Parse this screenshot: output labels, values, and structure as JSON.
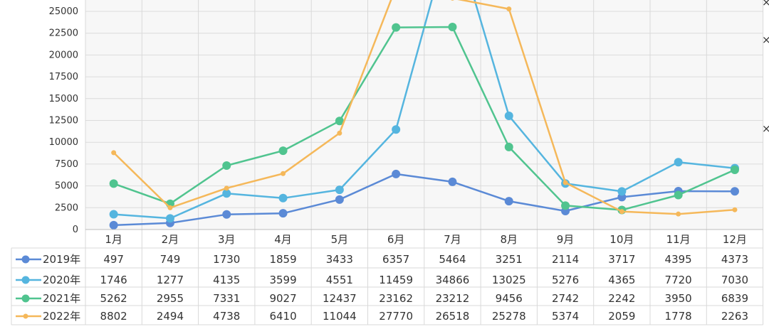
{
  "chart_data": {
    "type": "line",
    "title": "",
    "xlabel": "",
    "ylabel": "",
    "categories": [
      "1月",
      "2月",
      "3月",
      "4月",
      "5月",
      "6月",
      "7月",
      "8月",
      "9月",
      "10月",
      "11月",
      "12月"
    ],
    "ylim": [
      0,
      25000
    ],
    "yticks": [
      0,
      2500,
      5000,
      7500,
      10000,
      12500,
      15000,
      17500,
      20000,
      22500,
      25000
    ],
    "grid": true,
    "legend": "data table",
    "series": [
      {
        "name": "2019年",
        "color": "#5b8ad6",
        "values": [
          497,
          749,
          1730,
          1859,
          3433,
          6357,
          5464,
          3251,
          2114,
          3717,
          4395,
          4373
        ]
      },
      {
        "name": "2020年",
        "color": "#55b5df",
        "values": [
          1746,
          1277,
          4135,
          3599,
          4551,
          11459,
          34866,
          13025,
          5276,
          4365,
          7720,
          7030
        ]
      },
      {
        "name": "2021年",
        "color": "#50c48f",
        "values": [
          5262,
          2955,
          7331,
          9027,
          12437,
          23162,
          23212,
          9456,
          2742,
          2242,
          3950,
          6839
        ]
      },
      {
        "name": "2022年",
        "color": "#f5b85a",
        "values": [
          8802,
          2494,
          4738,
          6410,
          11044,
          27770,
          26518,
          25278,
          5374,
          2059,
          1778,
          2263
        ]
      }
    ]
  }
}
